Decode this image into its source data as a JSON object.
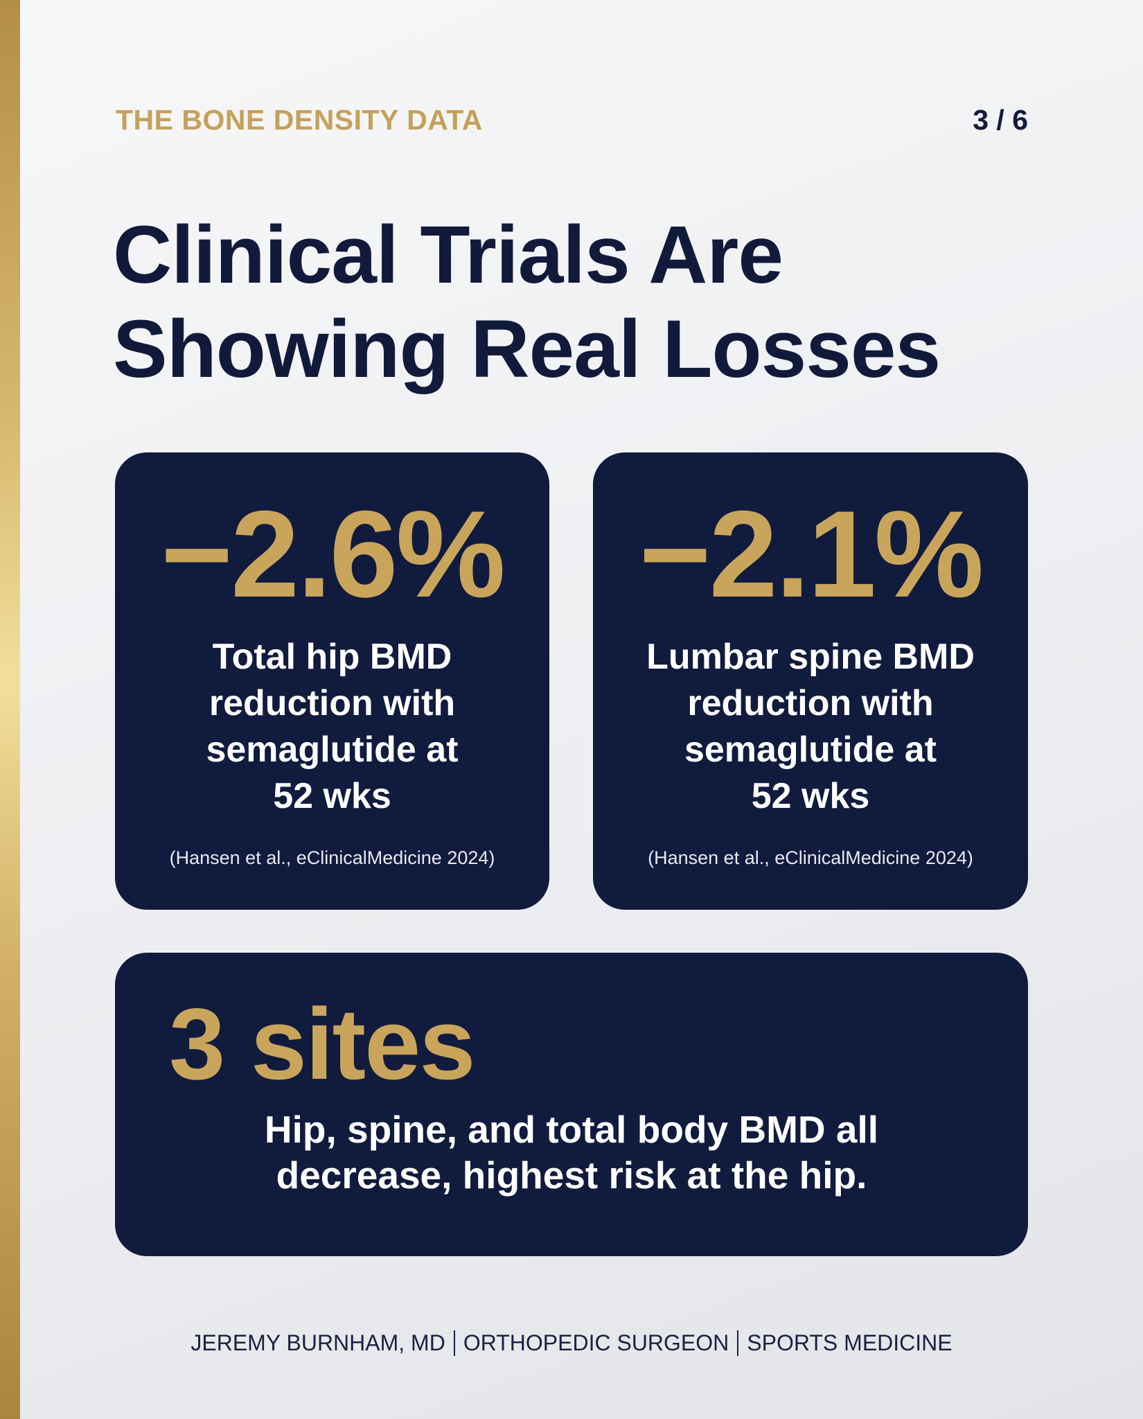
{
  "header": {
    "kicker": "THE BONE DENSITY DATA",
    "page": "3 / 6"
  },
  "title_lines": [
    "Clinical Trials Are",
    "Showing Real Losses"
  ],
  "cards": [
    {
      "stat": "−2.6%",
      "description_lines": [
        "Total hip BMD",
        "reduction with",
        "semaglutide at",
        "52 wks"
      ],
      "source": "(Hansen et al., eClinicalMedicine 2024)"
    },
    {
      "stat": "−2.1%",
      "description_lines": [
        "Lumbar spine BMD",
        "reduction with",
        "semaglutide at",
        "52 wks"
      ],
      "source": "(Hansen et al., eClinicalMedicine 2024)"
    }
  ],
  "wide_card": {
    "stat": "3 sites",
    "description_lines": [
      "Hip, spine, and total body BMD all",
      "decrease, highest risk at the hip."
    ]
  },
  "footer": {
    "items": [
      "JEREMY BURNHAM, MD",
      "ORTHOPEDIC SURGEON",
      "SPORTS MEDICINE"
    ]
  }
}
